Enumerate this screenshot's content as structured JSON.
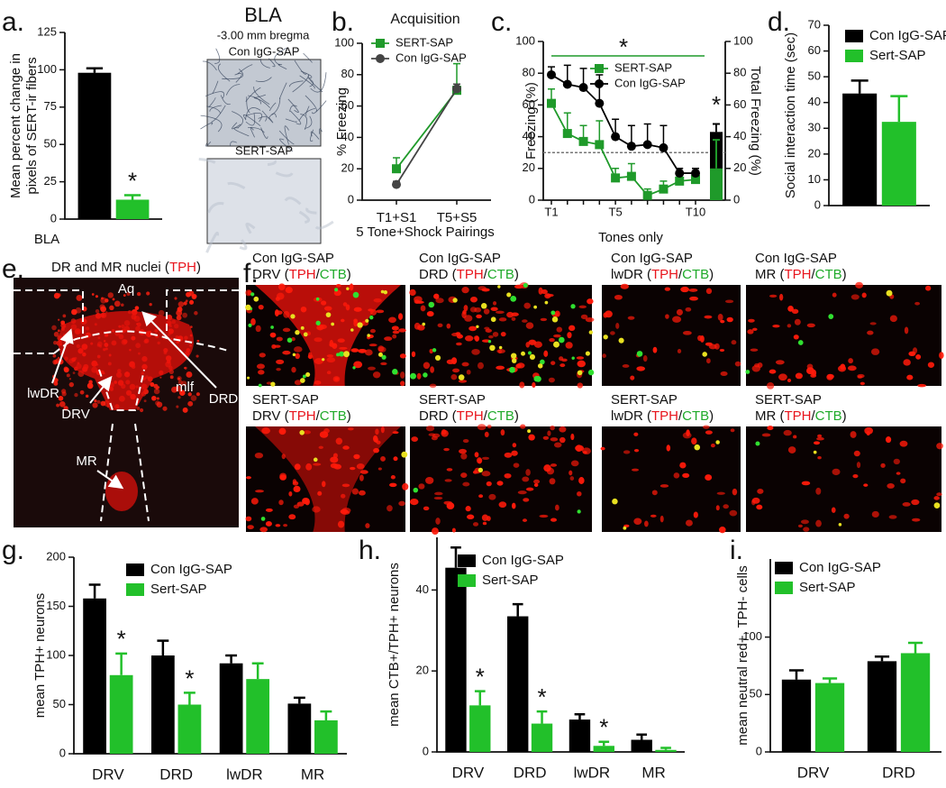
{
  "chart_data": [
    {
      "panel": "a.",
      "type": "bar",
      "ylabel": [
        "Mean percent change in",
        "pixels of SERT-ir fibers"
      ],
      "xlabel": "BLA",
      "categories": [
        null
      ],
      "series": [
        {
          "color": "#000000",
          "values": [
            98
          ],
          "errors": [
            3
          ]
        },
        {
          "color": "#22c02a",
          "values": [
            13
          ],
          "errors": [
            3
          ],
          "annotations": [
            "*"
          ]
        }
      ],
      "ylim": [
        0,
        125
      ],
      "yticks": [
        0,
        25,
        50,
        75,
        100,
        125
      ]
    },
    {
      "panel": "b.",
      "type": "line",
      "title": "Acquisition",
      "ylabel": "% Freezing",
      "xlabel": "5 Tone+Shock Pairings",
      "categories": [
        "T1+S1",
        "T5+S5"
      ],
      "series": [
        {
          "name": "SERT-SAP",
          "color": "#1f9a2a",
          "marker": "square",
          "values": [
            20,
            70
          ],
          "errors": [
            7,
            17
          ]
        },
        {
          "name": "Con IgG-SAP",
          "color": "#444444",
          "marker": "circle",
          "values": [
            10,
            71
          ],
          "errors": [
            2,
            3
          ]
        }
      ],
      "ylim": [
        0,
        100
      ],
      "yticks": [
        0,
        20,
        40,
        60,
        80,
        100
      ],
      "legend": "upper left"
    },
    {
      "panel": "c.",
      "type": "line",
      "ylabel": "Freezing (%)",
      "y2label": "Total Freezing (%)",
      "xlabel": "Tones only",
      "categories": [
        "T1",
        null,
        null,
        null,
        "T5",
        null,
        null,
        null,
        null,
        "T10"
      ],
      "series": [
        {
          "name": "SERT-SAP",
          "color": "#1f9a2a",
          "marker": "square",
          "values": [
            61,
            42,
            37,
            35,
            14,
            15,
            3,
            7,
            12,
            13
          ],
          "errors": [
            9,
            13,
            10,
            15,
            6,
            8,
            4,
            5,
            4,
            4
          ],
          "total": 20,
          "total_error": 18,
          "total_annotation": "*"
        },
        {
          "name": "Con IgG-SAP",
          "color": "#000000",
          "marker": "circle",
          "values": [
            79,
            73,
            71,
            61,
            40,
            34,
            35,
            33,
            17,
            17
          ],
          "errors": [
            5,
            12,
            12,
            18,
            11,
            13,
            13,
            14,
            3,
            3
          ],
          "total": 43,
          "total_error": 5
        }
      ],
      "ylim": [
        0,
        100
      ],
      "yticks": [
        0,
        20,
        40,
        60,
        80,
        100
      ],
      "y2lim": [
        0,
        100
      ],
      "y2ticks": [
        0,
        20,
        40,
        60,
        80,
        100
      ],
      "reference_line": 30,
      "significance": "*",
      "legend": "upper right"
    },
    {
      "panel": "d.",
      "type": "bar",
      "ylabel": "Social interaction time (sec)",
      "categories": [
        null
      ],
      "series": [
        {
          "name": "Con IgG-SAP",
          "color": "#000000",
          "values": [
            43.5
          ],
          "errors": [
            5
          ]
        },
        {
          "name": "Sert-SAP",
          "color": "#22c02a",
          "values": [
            32.5
          ],
          "errors": [
            10
          ]
        }
      ],
      "ylim": [
        0,
        70
      ],
      "yticks": [
        0,
        10,
        20,
        30,
        40,
        50,
        60,
        70
      ],
      "legend": "upper right"
    },
    {
      "panel": "g.",
      "type": "bar",
      "ylabel": "mean TPH+ neurons",
      "categories": [
        "DRV",
        "DRD",
        "lwDR",
        "MR"
      ],
      "series": [
        {
          "name": "Con IgG-SAP",
          "color": "#000000",
          "values": [
            158,
            100,
            92,
            51
          ],
          "errors": [
            14,
            15,
            8,
            6
          ]
        },
        {
          "name": "Sert-SAP",
          "color": "#22c02a",
          "values": [
            80,
            50,
            76,
            34
          ],
          "errors": [
            22,
            12,
            16,
            9
          ],
          "annotations": [
            "*",
            "*",
            null,
            null
          ]
        }
      ],
      "ylim": [
        0,
        200
      ],
      "yticks": [
        0,
        50,
        100,
        150,
        200
      ],
      "legend": "upper right"
    },
    {
      "panel": "h.",
      "type": "bar",
      "ylabel": "mean CTB+/TPH+ neurons",
      "categories": [
        "DRV",
        "DRD",
        "lwDR",
        "MR"
      ],
      "series": [
        {
          "name": "Con IgG-SAP",
          "color": "#000000",
          "values": [
            45.5,
            33.5,
            8,
            3
          ],
          "errors": [
            5,
            3,
            1.3,
            1.3
          ]
        },
        {
          "name": "Sert-SAP",
          "color": "#22c02a",
          "values": [
            11.5,
            7,
            1.5,
            0.5
          ],
          "errors": [
            3.5,
            3,
            1,
            0.5
          ],
          "annotations": [
            "*",
            "*",
            "*",
            null
          ]
        }
      ],
      "ylim": [
        0,
        53
      ],
      "yticks": [
        0,
        20,
        40
      ],
      "legend": "upper right"
    },
    {
      "panel": "i.",
      "type": "bar",
      "ylabel": "mean neutral red+, TPH- cells",
      "categories": [
        "DRV",
        "DRD"
      ],
      "series": [
        {
          "name": "Con IgG-SAP",
          "color": "#000000",
          "values": [
            63,
            79
          ],
          "errors": [
            8,
            4
          ]
        },
        {
          "name": "Sert-SAP",
          "color": "#22c02a",
          "values": [
            60,
            86
          ],
          "errors": [
            4,
            9
          ]
        }
      ],
      "ylim": [
        0,
        168
      ],
      "yticks": [
        0,
        50,
        100
      ],
      "legend": "upper right"
    }
  ],
  "bla": {
    "title": "BLA",
    "subtitle": "-3.00 mm bregma",
    "labels": [
      "Con IgG-SAP",
      "SERT-SAP"
    ]
  },
  "nuclei": {
    "panel": "e.",
    "title_parts": [
      "DR and MR nuclei (",
      "TPH",
      ")"
    ],
    "title_colors": [
      "#111111",
      "#e8141c",
      "#111111"
    ],
    "regions": [
      "Aq",
      "lwDR",
      "mlf",
      "DRD",
      "DRV",
      "MR"
    ]
  },
  "micrographs": {
    "panel": "f.",
    "part_colors": [
      "#111111",
      "#e8141c",
      "#111111",
      "#1faa2a",
      "#111111"
    ],
    "images": [
      {
        "group": "Con IgG-SAP",
        "caption_parts": [
          "DRV (",
          "TPH",
          "/",
          "CTB",
          ")"
        ]
      },
      {
        "group": "Con IgG-SAP",
        "caption_parts": [
          "DRD (",
          "TPH",
          "/",
          "CTB",
          ")"
        ]
      },
      {
        "group": "Con IgG-SAP",
        "caption_parts": [
          "lwDR (",
          "TPH",
          "/",
          "CTB",
          ")"
        ]
      },
      {
        "group": "Con IgG-SAP",
        "caption_parts": [
          "MR (",
          "TPH",
          "/",
          "CTB",
          ")"
        ]
      },
      {
        "group": "SERT-SAP",
        "caption_parts": [
          "DRV (",
          "TPH",
          "/",
          "CTB",
          ")"
        ]
      },
      {
        "group": "SERT-SAP",
        "caption_parts": [
          "DRD (",
          "TPH",
          "/",
          "CTB",
          ")"
        ]
      },
      {
        "group": "SERT-SAP",
        "caption_parts": [
          "lwDR (",
          "TPH",
          "/",
          "CTB",
          ")"
        ]
      },
      {
        "group": "SERT-SAP",
        "caption_parts": [
          "MR (",
          "TPH",
          "/",
          "CTB",
          ")"
        ]
      }
    ]
  }
}
